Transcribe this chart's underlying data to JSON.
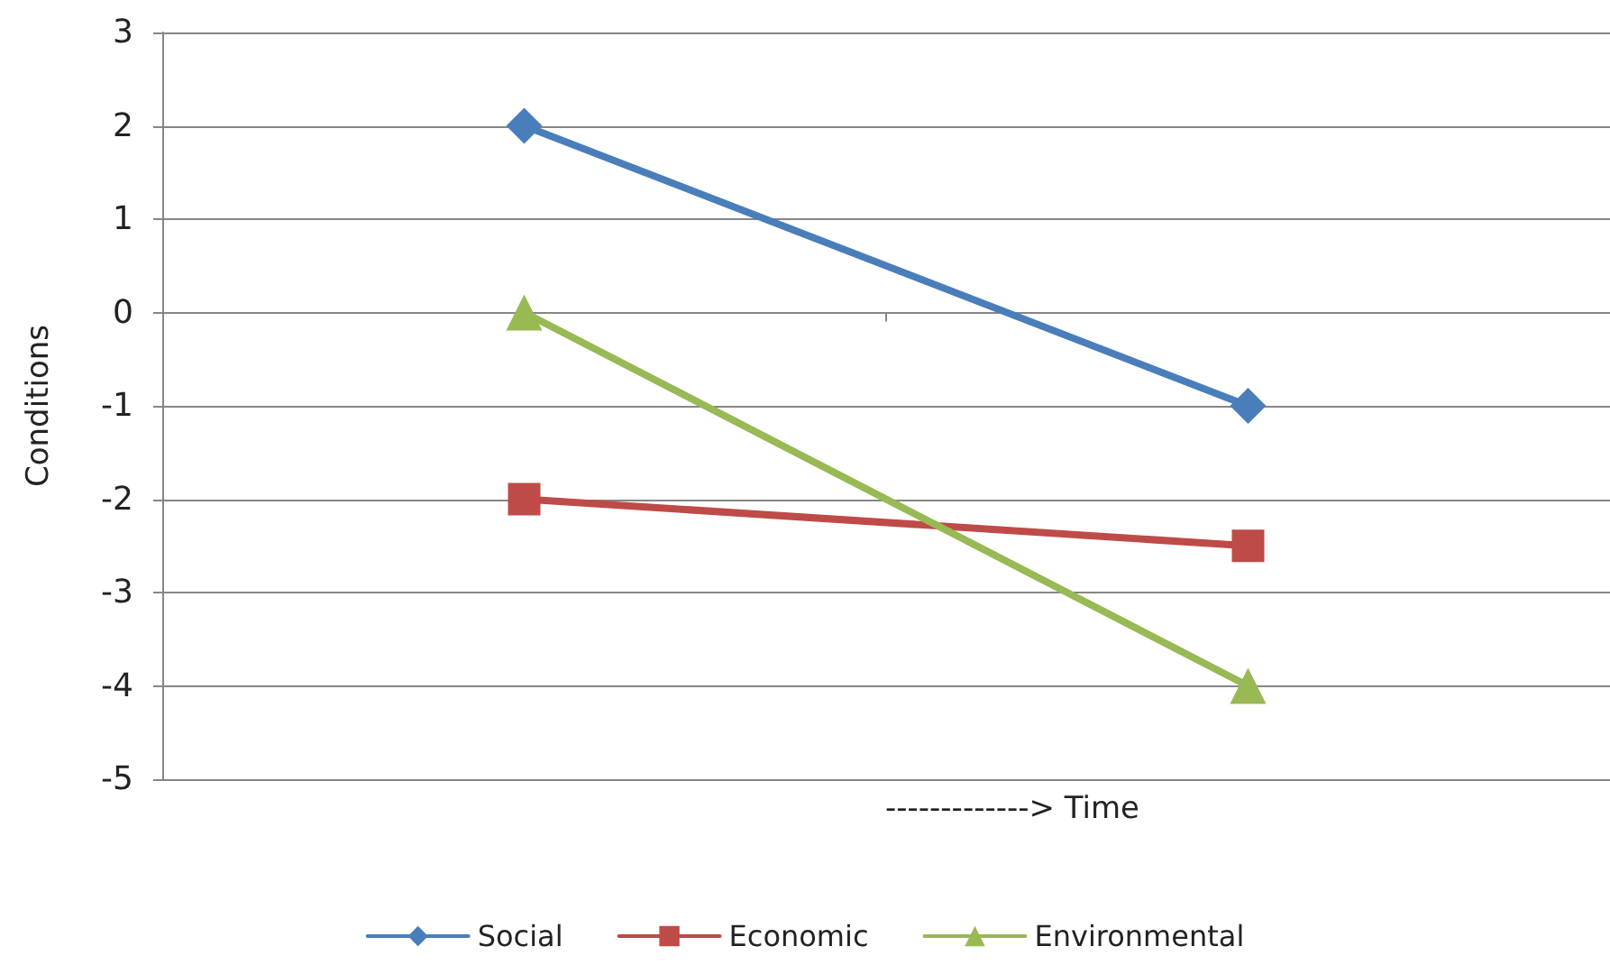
{
  "chart_data": {
    "type": "line",
    "xlabel": "-------------> Time",
    "ylabel": "Conditions",
    "categories": [
      null,
      null
    ],
    "series": [
      {
        "name": "Social",
        "color": "#4a7ebb",
        "marker": "diamond",
        "values": [
          2,
          -1
        ]
      },
      {
        "name": "Economic",
        "color": "#be4b48",
        "marker": "square",
        "values": [
          -2,
          -2.5
        ]
      },
      {
        "name": "Environmental",
        "color": "#98b954",
        "marker": "triangle",
        "values": [
          0,
          -4
        ]
      }
    ],
    "ylim": [
      -5,
      3
    ],
    "yticks": [
      -5,
      -4,
      -3,
      -2,
      -1,
      0,
      1,
      2,
      3
    ],
    "grid": "y",
    "legend": "bottom"
  }
}
